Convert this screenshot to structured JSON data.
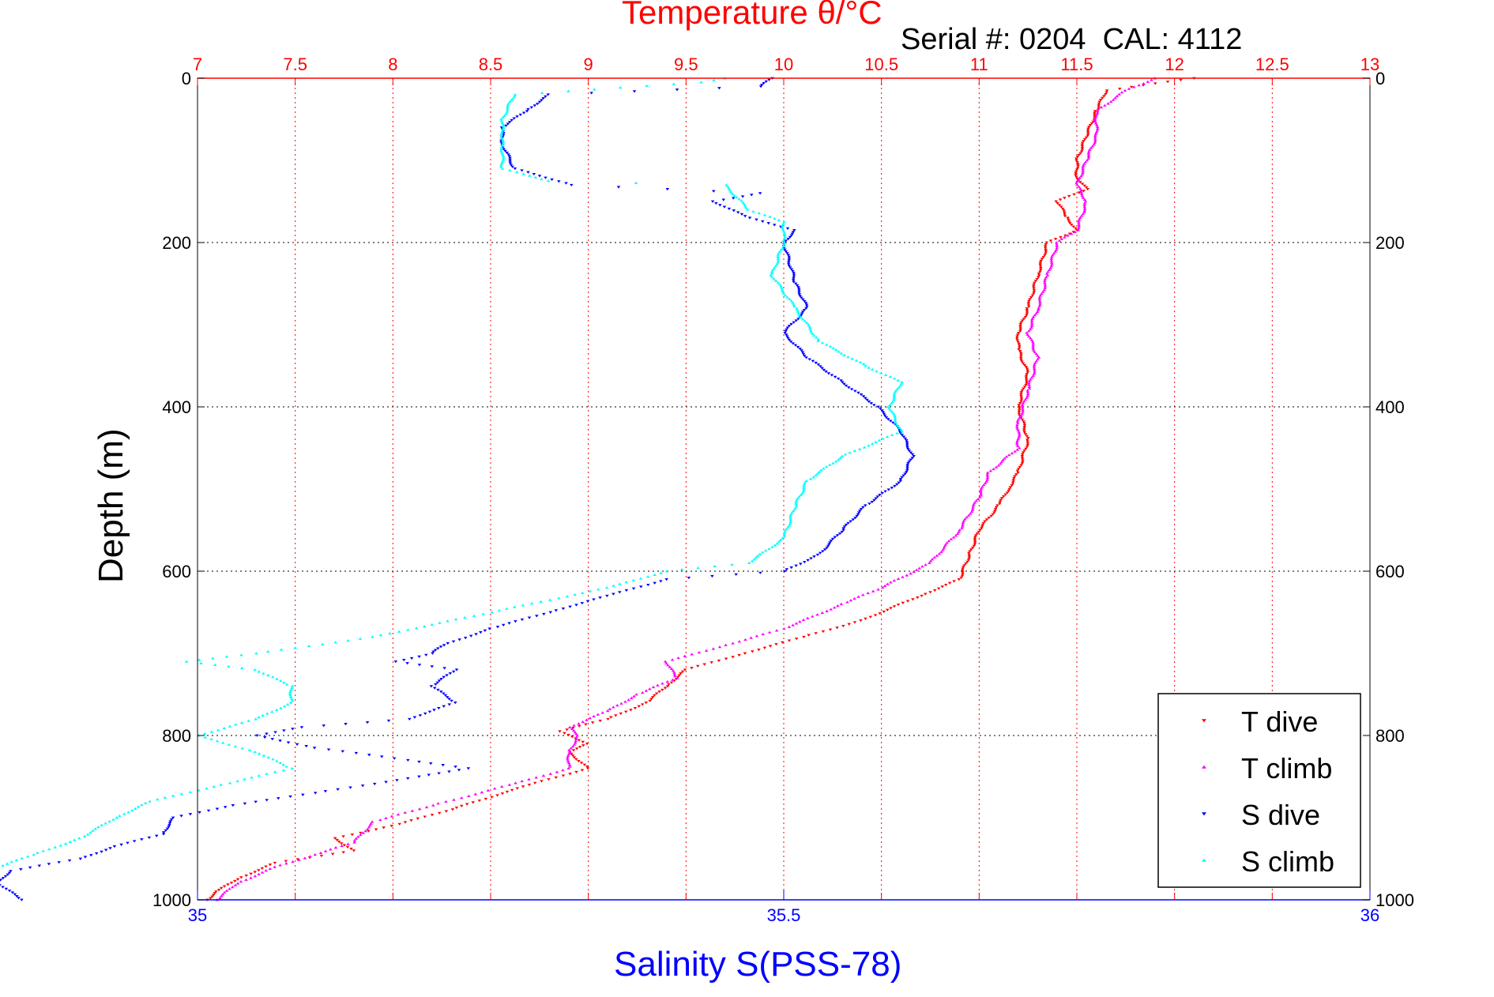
{
  "chart_data": {
    "type": "scatter",
    "title": "Temperature θ/°C",
    "annotation": "Serial #: 0204  CAL: 4112",
    "xlabel": "Salinity S(PSS-78)",
    "ylabel": "Depth (m)",
    "top_axis": {
      "label": "Temperature θ/°C",
      "lim": [
        7,
        13
      ],
      "ticks": [
        "7",
        "7.5",
        "8",
        "8.5",
        "9",
        "9.5",
        "10",
        "10.5",
        "11",
        "11.5",
        "12",
        "12.5",
        "13"
      ],
      "tick_values": [
        7,
        7.5,
        8,
        8.5,
        9,
        9.5,
        10,
        10.5,
        11,
        11.5,
        12,
        12.5,
        13
      ]
    },
    "bottom_axis": {
      "label": "Salinity S(PSS-78)",
      "lim": [
        35,
        36
      ],
      "ticks": [
        "35",
        "35.5",
        "36"
      ],
      "tick_values": [
        35,
        35.5,
        36
      ]
    },
    "y_axis": {
      "label": "Depth (m)",
      "lim": [
        0,
        1000
      ],
      "reversed": true,
      "ticks": [
        "0",
        "200",
        "400",
        "600",
        "800",
        "1000"
      ],
      "tick_values": [
        0,
        200,
        400,
        600,
        800,
        1000
      ]
    },
    "grid": true,
    "legend_position": "bottom-right",
    "series": [
      {
        "name": "T dive",
        "axis": "temperature",
        "color": "#ff0000",
        "marker": "triangle-down",
        "points": [
          [
            12.1,
            0
          ],
          [
            11.65,
            15
          ],
          [
            11.6,
            40
          ],
          [
            11.55,
            70
          ],
          [
            11.5,
            100
          ],
          [
            11.5,
            120
          ],
          [
            11.55,
            135
          ],
          [
            11.4,
            150
          ],
          [
            11.45,
            170
          ],
          [
            11.5,
            185
          ],
          [
            11.35,
            200
          ],
          [
            11.3,
            240
          ],
          [
            11.25,
            280
          ],
          [
            11.2,
            310
          ],
          [
            11.2,
            330
          ],
          [
            11.25,
            360
          ],
          [
            11.2,
            400
          ],
          [
            11.25,
            440
          ],
          [
            11.2,
            480
          ],
          [
            11.15,
            500
          ],
          [
            11.1,
            520
          ],
          [
            11.0,
            550
          ],
          [
            10.95,
            580
          ],
          [
            10.9,
            610
          ],
          [
            10.7,
            630
          ],
          [
            10.4,
            660
          ],
          [
            10.1,
            680
          ],
          [
            9.8,
            700
          ],
          [
            9.5,
            720
          ],
          [
            9.4,
            740
          ],
          [
            9.3,
            760
          ],
          [
            9.1,
            780
          ],
          [
            8.85,
            795
          ],
          [
            9.0,
            810
          ],
          [
            8.9,
            820
          ],
          [
            9.0,
            840
          ],
          [
            8.7,
            860
          ],
          [
            8.3,
            890
          ],
          [
            8.0,
            910
          ],
          [
            7.7,
            925
          ],
          [
            7.8,
            940
          ],
          [
            7.4,
            955
          ],
          [
            7.2,
            975
          ],
          [
            7.1,
            990
          ],
          [
            7.05,
            1000
          ]
        ]
      },
      {
        "name": "T climb",
        "axis": "temperature",
        "color": "#ff00ff",
        "marker": "triangle-up",
        "points": [
          [
            11.9,
            0
          ],
          [
            11.75,
            15
          ],
          [
            11.6,
            40
          ],
          [
            11.6,
            70
          ],
          [
            11.55,
            100
          ],
          [
            11.5,
            130
          ],
          [
            11.55,
            150
          ],
          [
            11.5,
            185
          ],
          [
            11.4,
            200
          ],
          [
            11.35,
            240
          ],
          [
            11.3,
            280
          ],
          [
            11.25,
            310
          ],
          [
            11.3,
            340
          ],
          [
            11.25,
            380
          ],
          [
            11.2,
            420
          ],
          [
            11.2,
            450
          ],
          [
            11.05,
            480
          ],
          [
            11.0,
            510
          ],
          [
            10.9,
            550
          ],
          [
            10.75,
            590
          ],
          [
            10.5,
            620
          ],
          [
            10.3,
            640
          ],
          [
            10.0,
            670
          ],
          [
            9.7,
            690
          ],
          [
            9.4,
            710
          ],
          [
            9.45,
            730
          ],
          [
            9.25,
            750
          ],
          [
            9.1,
            770
          ],
          [
            8.9,
            790
          ],
          [
            8.95,
            800
          ],
          [
            8.9,
            820
          ],
          [
            8.9,
            840
          ],
          [
            8.6,
            860
          ],
          [
            8.2,
            885
          ],
          [
            7.9,
            905
          ],
          [
            7.8,
            930
          ],
          [
            7.6,
            945
          ],
          [
            7.4,
            960
          ],
          [
            7.2,
            980
          ],
          [
            7.1,
            1000
          ]
        ]
      },
      {
        "name": "S dive",
        "axis": "salinity",
        "color": "#0000ff",
        "marker": "triangle-down",
        "points": [
          [
            35.49,
            0
          ],
          [
            35.48,
            10
          ],
          [
            35.3,
            20
          ],
          [
            35.28,
            40
          ],
          [
            35.26,
            60
          ],
          [
            35.26,
            80
          ],
          [
            35.27,
            110
          ],
          [
            35.32,
            130
          ],
          [
            35.4,
            135
          ],
          [
            35.48,
            140
          ],
          [
            35.44,
            150
          ],
          [
            35.47,
            170
          ],
          [
            35.51,
            185
          ],
          [
            35.5,
            200
          ],
          [
            35.51,
            250
          ],
          [
            35.52,
            280
          ],
          [
            35.5,
            310
          ],
          [
            35.52,
            340
          ],
          [
            35.55,
            370
          ],
          [
            35.58,
            400
          ],
          [
            35.6,
            430
          ],
          [
            35.61,
            460
          ],
          [
            35.6,
            490
          ],
          [
            35.57,
            520
          ],
          [
            35.55,
            550
          ],
          [
            35.53,
            580
          ],
          [
            35.5,
            600
          ],
          [
            35.4,
            610
          ],
          [
            35.35,
            630
          ],
          [
            35.3,
            650
          ],
          [
            35.25,
            670
          ],
          [
            35.21,
            690
          ],
          [
            35.2,
            700
          ],
          [
            35.17,
            710
          ],
          [
            35.22,
            720
          ],
          [
            35.2,
            740
          ],
          [
            35.22,
            760
          ],
          [
            35.18,
            780
          ],
          [
            35.09,
            790
          ],
          [
            35.05,
            800
          ],
          [
            35.1,
            815
          ],
          [
            35.18,
            830
          ],
          [
            35.23,
            840
          ],
          [
            35.19,
            850
          ],
          [
            35.1,
            870
          ],
          [
            35.03,
            885
          ],
          [
            34.98,
            900
          ],
          [
            34.97,
            920
          ],
          [
            34.93,
            935
          ],
          [
            34.9,
            950
          ],
          [
            34.84,
            965
          ],
          [
            34.83,
            980
          ],
          [
            34.85,
            1000
          ]
        ]
      },
      {
        "name": "S climb",
        "axis": "salinity",
        "color": "#00ffff",
        "marker": "triangle-up",
        "points": [
          [
            35.45,
            0
          ],
          [
            35.43,
            5
          ],
          [
            35.27,
            20
          ],
          [
            35.26,
            50
          ],
          [
            35.26,
            80
          ],
          [
            35.26,
            110
          ],
          [
            35.3,
            125
          ],
          [
            35.45,
            130
          ],
          [
            35.47,
            160
          ],
          [
            35.5,
            175
          ],
          [
            35.5,
            200
          ],
          [
            35.49,
            240
          ],
          [
            35.51,
            280
          ],
          [
            35.53,
            320
          ],
          [
            35.57,
            350
          ],
          [
            35.6,
            370
          ],
          [
            35.59,
            400
          ],
          [
            35.6,
            430
          ],
          [
            35.55,
            460
          ],
          [
            35.52,
            490
          ],
          [
            35.51,
            520
          ],
          [
            35.5,
            560
          ],
          [
            35.47,
            590
          ],
          [
            35.4,
            600
          ],
          [
            35.35,
            620
          ],
          [
            35.25,
            650
          ],
          [
            35.15,
            680
          ],
          [
            35.05,
            700
          ],
          [
            34.99,
            710
          ],
          [
            35.05,
            720
          ],
          [
            35.08,
            740
          ],
          [
            35.08,
            760
          ],
          [
            35.05,
            780
          ],
          [
            35.0,
            800
          ],
          [
            35.05,
            820
          ],
          [
            35.08,
            840
          ],
          [
            35.02,
            860
          ],
          [
            34.96,
            880
          ],
          [
            34.93,
            900
          ],
          [
            34.9,
            925
          ],
          [
            34.86,
            945
          ],
          [
            34.82,
            965
          ],
          [
            34.8,
            985
          ],
          [
            34.8,
            1000
          ]
        ]
      }
    ]
  },
  "legend": {
    "items": [
      {
        "label": "T dive",
        "color": "#ff0000",
        "marker": "triangle-down"
      },
      {
        "label": "T climb",
        "color": "#ff00ff",
        "marker": "triangle-up"
      },
      {
        "label": "S dive",
        "color": "#0000ff",
        "marker": "triangle-down"
      },
      {
        "label": "S climb",
        "color": "#00ffff",
        "marker": "triangle-up"
      }
    ]
  },
  "colors": {
    "temperature_axis": "#ff0000",
    "salinity_axis": "#0000ff",
    "grid_temperature": "#ff0000",
    "grid_depth": "#000000"
  }
}
